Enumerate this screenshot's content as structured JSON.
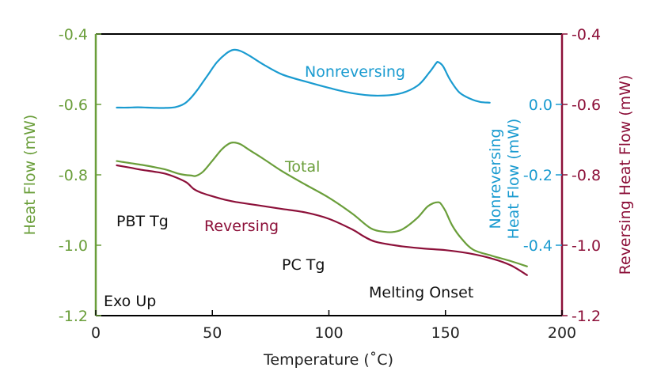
{
  "chart_data": {
    "type": "line",
    "xlabel": "Temperature (˚C)",
    "x_axis": {
      "min": 0,
      "max": 200,
      "ticks": [
        0,
        50,
        100,
        150,
        200
      ],
      "tick_labels": [
        "0",
        "50",
        "100",
        "150",
        "200"
      ]
    },
    "left_axis": {
      "label": "Heat Flow (mW)",
      "min": -1.2,
      "max": -0.4,
      "ticks": [
        -0.4,
        -0.6,
        -0.8,
        -1.0,
        -1.2
      ],
      "tick_labels": [
        "-0.4",
        "-0.6",
        "-0.8",
        "-1.0",
        "-1.2"
      ],
      "color": "#6a9e3a"
    },
    "right_axis": {
      "label": "Reversing Heat Flow (mW)",
      "min": -1.2,
      "max": -0.4,
      "ticks": [
        -0.4,
        -0.6,
        -0.8,
        -1.0,
        -1.2
      ],
      "tick_labels": [
        "-0.4",
        "-0.6",
        "-0.8",
        "-1.0",
        "-1.2"
      ],
      "color": "#8c1039"
    },
    "inner_axis": {
      "label_lines": [
        "Nonreversing",
        "Heat Flow (mW)"
      ],
      "ticks": [
        0.0,
        -0.2,
        -0.4
      ],
      "tick_labels": [
        "0.0",
        "-0.2",
        "-0.4"
      ],
      "tick_positions_on_left_scale": [
        -0.6,
        -0.8,
        -1.0
      ],
      "color": "#1a9bd0"
    },
    "series": [
      {
        "name": "Nonreversing",
        "color": "#1a9bd0",
        "axis": "left",
        "x": [
          9,
          14,
          18,
          22,
          26,
          30,
          34,
          38,
          41,
          44,
          48,
          52,
          56,
          59,
          62,
          66,
          72,
          80,
          90,
          100,
          110,
          120,
          130,
          138,
          143,
          146,
          147,
          149,
          152,
          156,
          161,
          165,
          169
        ],
        "y": [
          -0.609,
          -0.609,
          -0.608,
          -0.609,
          -0.61,
          -0.61,
          -0.608,
          -0.598,
          -0.58,
          -0.555,
          -0.517,
          -0.48,
          -0.455,
          -0.445,
          -0.448,
          -0.462,
          -0.487,
          -0.515,
          -0.535,
          -0.553,
          -0.568,
          -0.575,
          -0.57,
          -0.547,
          -0.51,
          -0.483,
          -0.48,
          -0.492,
          -0.53,
          -0.566,
          -0.585,
          -0.593,
          -0.595
        ]
      },
      {
        "name": "Total",
        "color": "#6a9e3a",
        "axis": "left",
        "x": [
          9,
          15,
          20,
          25,
          30,
          35,
          38,
          41,
          43,
          46,
          50,
          54,
          57,
          59,
          62,
          66,
          72,
          80,
          90,
          100,
          110,
          118,
          124,
          128,
          132,
          138,
          142,
          145,
          147,
          148,
          150,
          153,
          157,
          162,
          170,
          178,
          185
        ],
        "y": [
          -0.761,
          -0.767,
          -0.772,
          -0.778,
          -0.785,
          -0.796,
          -0.8,
          -0.802,
          -0.803,
          -0.791,
          -0.76,
          -0.728,
          -0.712,
          -0.708,
          -0.713,
          -0.73,
          -0.755,
          -0.79,
          -0.828,
          -0.865,
          -0.91,
          -0.952,
          -0.962,
          -0.962,
          -0.953,
          -0.922,
          -0.892,
          -0.88,
          -0.878,
          -0.882,
          -0.903,
          -0.945,
          -0.982,
          -1.013,
          -1.03,
          -1.045,
          -1.06
        ]
      },
      {
        "name": "Reversing",
        "color": "#8c1039",
        "axis": "right",
        "x": [
          9,
          15,
          20,
          25,
          30,
          35,
          39,
          42,
          45,
          50,
          55,
          60,
          70,
          80,
          90,
          100,
          110,
          115,
          120,
          130,
          140,
          150,
          160,
          170,
          178,
          185
        ],
        "y": [
          -0.773,
          -0.78,
          -0.786,
          -0.791,
          -0.797,
          -0.809,
          -0.822,
          -0.84,
          -0.85,
          -0.861,
          -0.87,
          -0.877,
          -0.887,
          -0.897,
          -0.907,
          -0.925,
          -0.955,
          -0.975,
          -0.99,
          -1.002,
          -1.009,
          -1.014,
          -1.023,
          -1.038,
          -1.057,
          -1.085
        ]
      }
    ],
    "annotations": {
      "nonreversing": "Nonreversing",
      "total": "Total",
      "reversing": "Reversing",
      "pbt_tg": "PBT Tg",
      "pc_tg": "PC Tg",
      "melting_onset": "Melting Onset",
      "exo_up": "Exo Up"
    },
    "grid": false,
    "legend": "none"
  }
}
